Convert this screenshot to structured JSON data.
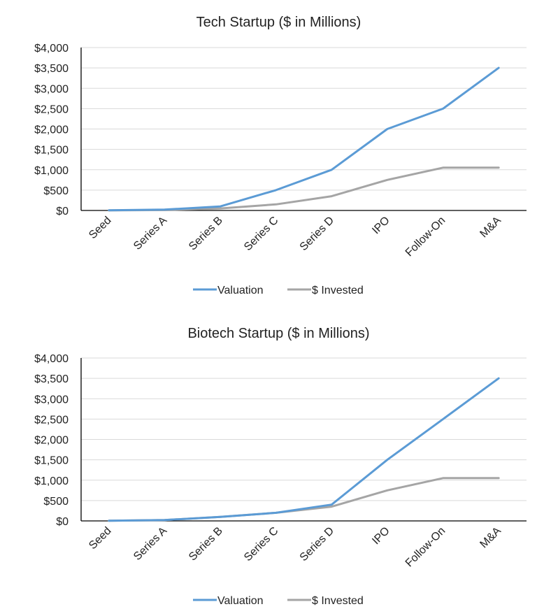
{
  "chart_data": [
    {
      "type": "line",
      "title": "Tech Startup ($ in Millions)",
      "categories": [
        "Seed",
        "Series A",
        "Series B",
        "Series C",
        "Series D",
        "IPO",
        "Follow-On",
        "M&A"
      ],
      "y_tick_labels": [
        "$0",
        "$500",
        "$1,000",
        "$1,500",
        "$2,000",
        "$2,500",
        "$3,000",
        "$3,500",
        "$4,000"
      ],
      "ylim": [
        0,
        4000
      ],
      "grid": true,
      "legend_position": "bottom",
      "series": [
        {
          "name": "Valuation",
          "color": "#5b9bd5",
          "values": [
            5,
            20,
            100,
            500,
            1000,
            2000,
            2500,
            3500
          ]
        },
        {
          "name": "$ Invested",
          "color": "#a5a5a5",
          "values": [
            2,
            10,
            50,
            150,
            350,
            750,
            1050,
            1050
          ]
        }
      ]
    },
    {
      "type": "line",
      "title": "Biotech Startup ($ in Millions)",
      "categories": [
        "Seed",
        "Series A",
        "Series B",
        "Series C",
        "Series D",
        "IPO",
        "Follow-On",
        "M&A"
      ],
      "y_tick_labels": [
        "$0",
        "$500",
        "$1,000",
        "$1,500",
        "$2,000",
        "$2,500",
        "$3,000",
        "$3,500",
        "$4,000"
      ],
      "ylim": [
        0,
        4000
      ],
      "grid": true,
      "legend_position": "bottom",
      "series": [
        {
          "name": "Valuation",
          "color": "#5b9bd5",
          "values": [
            5,
            20,
            100,
            200,
            400,
            1500,
            2500,
            3500
          ]
        },
        {
          "name": "$ Invested",
          "color": "#a5a5a5",
          "values": [
            5,
            20,
            100,
            200,
            350,
            750,
            1050,
            1050
          ]
        }
      ]
    }
  ]
}
